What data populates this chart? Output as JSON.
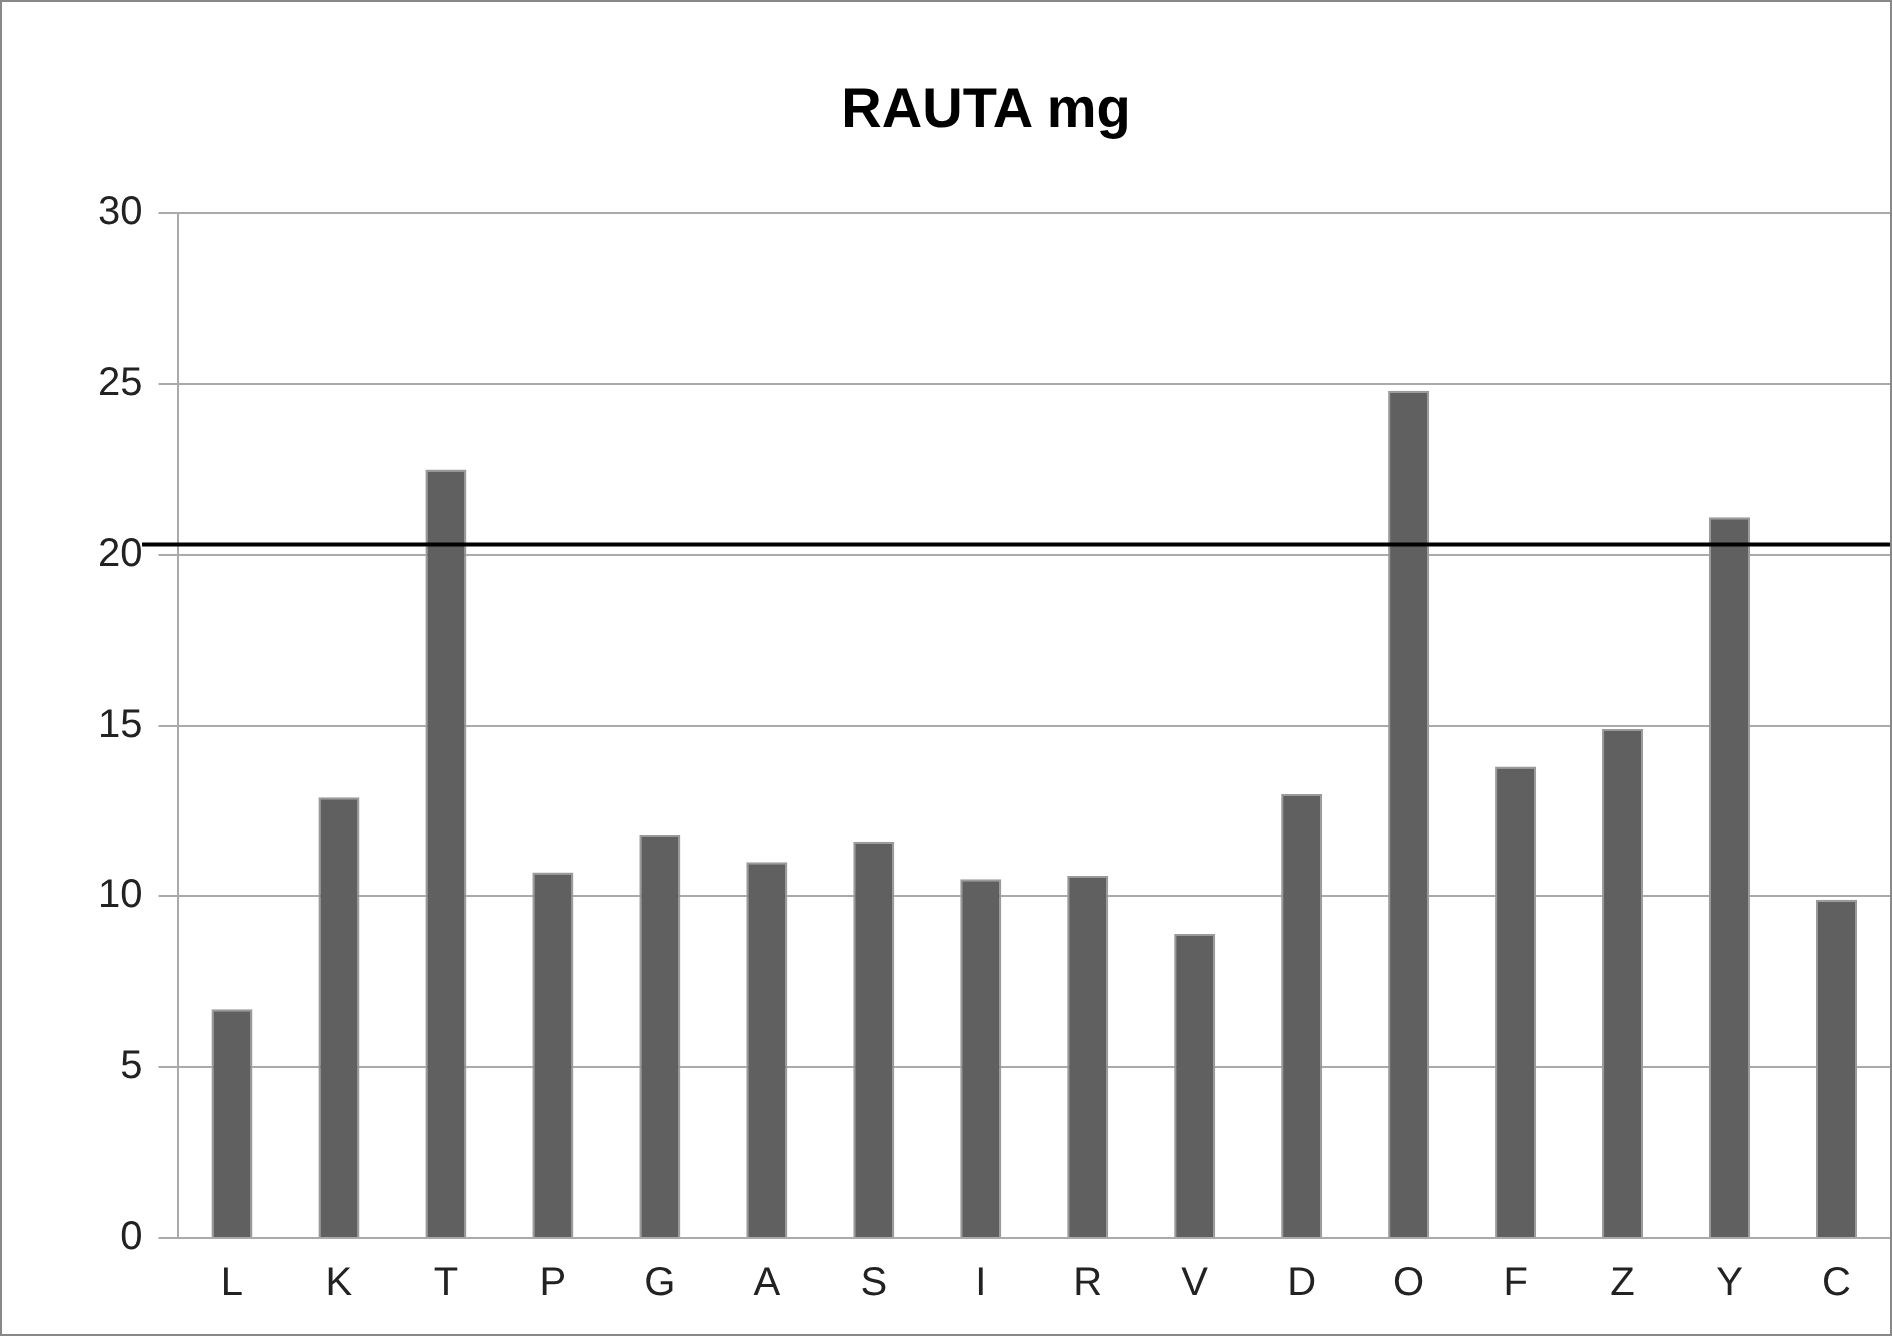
{
  "chart_data": {
    "type": "bar",
    "title": "RAUTA mg",
    "categories": [
      "L",
      "K",
      "T",
      "P",
      "G",
      "A",
      "S",
      "I",
      "R",
      "V",
      "D",
      "O",
      "F",
      "Z",
      "Y",
      "C"
    ],
    "values": [
      6.7,
      12.9,
      22.5,
      10.7,
      11.8,
      11.0,
      11.6,
      10.5,
      10.6,
      8.9,
      13.0,
      24.8,
      13.8,
      14.9,
      21.1,
      9.9
    ],
    "color": "#606060",
    "ylim": [
      0,
      30
    ],
    "yticks": [
      0,
      5,
      10,
      15,
      20,
      25,
      30
    ],
    "grid": "y",
    "legend": false,
    "ref_lines": [
      {
        "axis": "y",
        "value": 20.3,
        "color": "#000000"
      }
    ]
  }
}
